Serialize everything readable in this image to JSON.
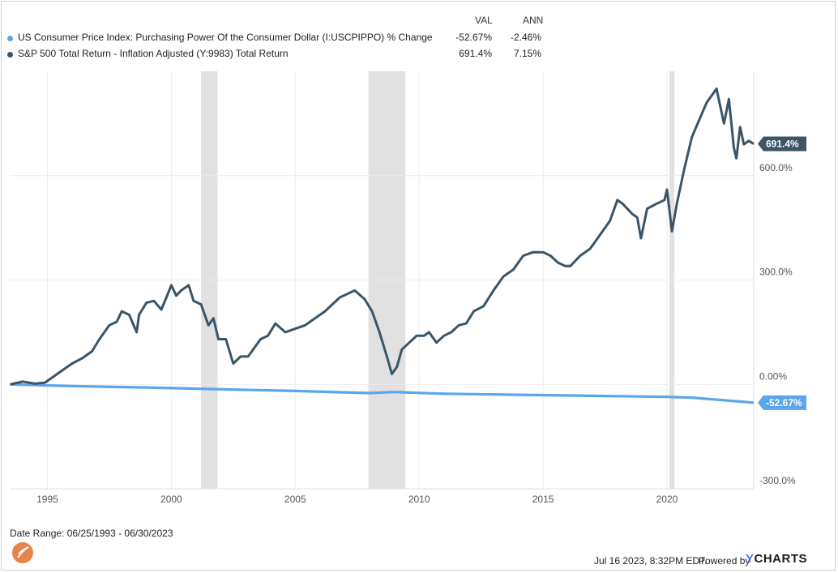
{
  "legend": {
    "col_val": "VAL",
    "col_ann": "ANN",
    "series": [
      {
        "name": "US Consumer Price Index: Purchasing Power Of the Consumer Dollar (I:USCPIPPO) % Change",
        "val": "-52.67%",
        "ann": "-2.46%",
        "color": "#5aa5ec"
      },
      {
        "name": "S&P 500 Total Return - Inflation Adjusted (Y:9983) Total Return",
        "val": "691.4%",
        "ann": "7.15%",
        "color": "#3b5567"
      }
    ]
  },
  "chart_data": {
    "type": "line",
    "x_ticks": [
      "1995",
      "2000",
      "2005",
      "2010",
      "2015",
      "2020"
    ],
    "y_ticks": [
      "600.0%",
      "300.0%",
      "0.00%",
      "-300.0%"
    ],
    "ylim": [
      -300,
      900
    ],
    "xlim": [
      1993.48,
      2023.5
    ],
    "recession_bands": [
      [
        2001.2,
        2001.87
      ],
      [
        2007.95,
        2009.45
      ],
      [
        2020.1,
        2020.3
      ]
    ],
    "series": [
      {
        "name": "S&P 500 Total Return - Inflation Adjusted (Y:9983) Total Return",
        "color": "#3b5567",
        "end_label": "691.4%",
        "x": [
          1993.5,
          1994.0,
          1994.5,
          1994.9,
          1995.3,
          1995.7,
          1996.0,
          1996.4,
          1996.8,
          1997.1,
          1997.5,
          1997.8,
          1998.0,
          1998.3,
          1998.6,
          1998.7,
          1999.0,
          1999.3,
          1999.6,
          1999.8,
          2000.0,
          2000.2,
          2000.4,
          2000.7,
          2000.9,
          2001.2,
          2001.5,
          2001.7,
          2001.9,
          2002.2,
          2002.5,
          2002.8,
          2003.1,
          2003.3,
          2003.6,
          2003.9,
          2004.2,
          2004.6,
          2005.0,
          2005.4,
          2005.8,
          2006.2,
          2006.5,
          2006.8,
          2007.1,
          2007.4,
          2007.8,
          2008.1,
          2008.4,
          2008.7,
          2008.9,
          2009.1,
          2009.3,
          2009.6,
          2009.9,
          2010.2,
          2010.4,
          2010.7,
          2011.0,
          2011.3,
          2011.6,
          2011.9,
          2012.2,
          2012.6,
          2013.0,
          2013.4,
          2013.8,
          2014.2,
          2014.6,
          2015.0,
          2015.3,
          2015.6,
          2015.9,
          2016.1,
          2016.5,
          2016.9,
          2017.3,
          2017.7,
          2018.0,
          2018.2,
          2018.6,
          2018.8,
          2018.95,
          2019.2,
          2019.6,
          2019.9,
          2020.0,
          2020.2,
          2020.4,
          2020.7,
          2021.0,
          2021.3,
          2021.6,
          2021.9,
          2022.0,
          2022.3,
          2022.5,
          2022.7,
          2022.8,
          2022.95,
          2023.1,
          2023.3,
          2023.5
        ],
        "y": [
          0,
          8,
          2,
          5,
          25,
          45,
          60,
          75,
          95,
          130,
          170,
          180,
          210,
          200,
          150,
          200,
          235,
          240,
          215,
          250,
          285,
          255,
          270,
          285,
          240,
          230,
          170,
          190,
          130,
          130,
          60,
          80,
          80,
          100,
          130,
          140,
          175,
          150,
          160,
          170,
          190,
          210,
          230,
          250,
          260,
          270,
          245,
          210,
          150,
          80,
          30,
          50,
          100,
          120,
          140,
          140,
          150,
          120,
          140,
          150,
          170,
          175,
          210,
          225,
          270,
          310,
          330,
          370,
          380,
          380,
          370,
          350,
          340,
          340,
          370,
          390,
          430,
          470,
          530,
          520,
          490,
          480,
          420,
          505,
          520,
          530,
          560,
          440,
          520,
          620,
          710,
          760,
          810,
          840,
          850,
          750,
          820,
          680,
          650,
          740,
          690,
          700,
          691.4
        ]
      },
      {
        "name": "US Consumer Price Index: Purchasing Power Of the Consumer Dollar (I:USCPIPPO) % Change",
        "color": "#5aa5ec",
        "end_label": "-52.67%",
        "x": [
          1993.5,
          1996,
          1999,
          2002,
          2005,
          2008,
          2009,
          2011,
          2014,
          2017,
          2020,
          2021,
          2022,
          2023.5
        ],
        "y": [
          0,
          -5,
          -9,
          -14,
          -19,
          -25,
          -22,
          -27,
          -30,
          -33,
          -36,
          -38,
          -44,
          -52.67
        ]
      }
    ]
  },
  "footer": {
    "date_range": "Date Range: 06/25/1993 - 06/30/2023",
    "timestamp": "Jul 16 2023, 8:32PM EDT.",
    "powered_by": "Powered by",
    "brand_y": "Y",
    "brand_rest": "CHARTS"
  }
}
